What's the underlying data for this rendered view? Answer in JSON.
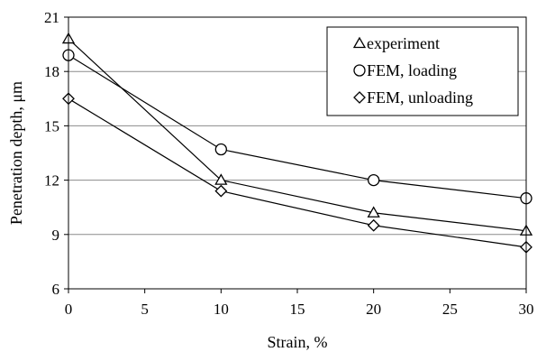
{
  "chart_data": {
    "type": "line",
    "title": "",
    "xlabel": "Strain, %",
    "ylabel": "Penetration depth, μm",
    "xlim": [
      0,
      30
    ],
    "ylim": [
      6,
      21
    ],
    "xticks": [
      0,
      5,
      10,
      15,
      20,
      25,
      30
    ],
    "yticks": [
      6,
      9,
      12,
      15,
      18,
      21
    ],
    "grid": "horizontal",
    "legend_position": "top-right",
    "series": [
      {
        "name": "experiment",
        "marker": "triangle",
        "x": [
          0,
          10,
          20,
          30
        ],
        "values": [
          19.8,
          12.0,
          10.2,
          9.2
        ]
      },
      {
        "name": "FEM, loading",
        "marker": "circle",
        "x": [
          0,
          10,
          20,
          30
        ],
        "values": [
          18.9,
          13.7,
          12.0,
          11.0
        ]
      },
      {
        "name": "FEM, unloading",
        "marker": "diamond",
        "x": [
          0,
          10,
          20,
          30
        ],
        "values": [
          16.5,
          11.4,
          9.5,
          8.3
        ]
      }
    ]
  }
}
